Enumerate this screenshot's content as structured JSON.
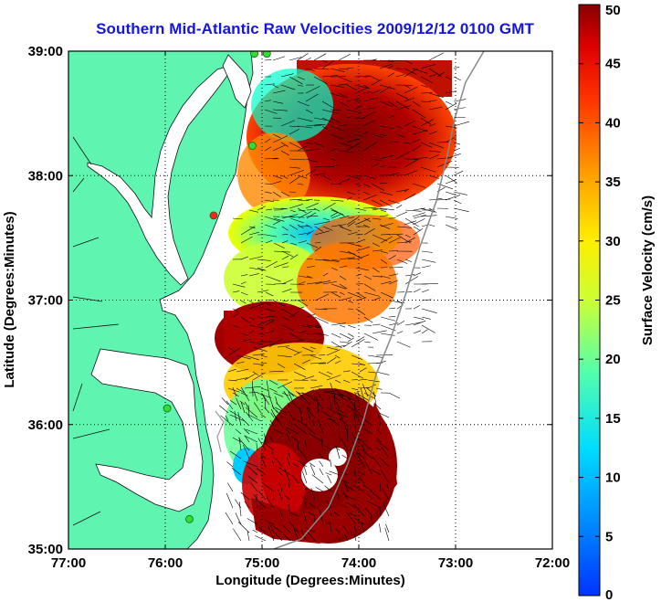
{
  "title": "Southern Mid-Atlantic Raw Velocities 2009/12/12 0100 GMT",
  "axes": {
    "xlabel": "Longitude (Degrees:Minutes)",
    "ylabel": "Latitude (Degrees:Minutes)",
    "x_ticks": [
      "77:00",
      "76:00",
      "75:00",
      "74:00",
      "73:00",
      "72:00"
    ],
    "y_ticks": [
      "39:00",
      "38:00",
      "37:00",
      "36:00",
      "35:00"
    ],
    "x_range_deg_west": [
      77,
      72
    ],
    "y_range_deg_north": [
      35,
      39
    ],
    "grid": "dotted"
  },
  "colorbar": {
    "label": "Surface Velocity (cm/s)",
    "ticks": [
      "50",
      "45",
      "40",
      "35",
      "30",
      "25",
      "20",
      "15",
      "10",
      "5",
      "0"
    ],
    "range": [
      0,
      50
    ],
    "colormap": "jet"
  },
  "colors": {
    "land": "#5ff5b1",
    "title": "#1414e6",
    "station": "#33dd33",
    "station_alt": "#ff2222"
  },
  "stations": [
    {
      "lon": -74.95,
      "lat": 38.98,
      "color": "green"
    },
    {
      "lon": -75.08,
      "lat": 38.98,
      "color": "green"
    },
    {
      "lon": -75.1,
      "lat": 38.24,
      "color": "green"
    },
    {
      "lon": -75.5,
      "lat": 37.68,
      "color": "red"
    },
    {
      "lon": -75.98,
      "lat": 36.13,
      "color": "green"
    },
    {
      "lon": -75.75,
      "lat": 35.24,
      "color": "green"
    }
  ]
}
